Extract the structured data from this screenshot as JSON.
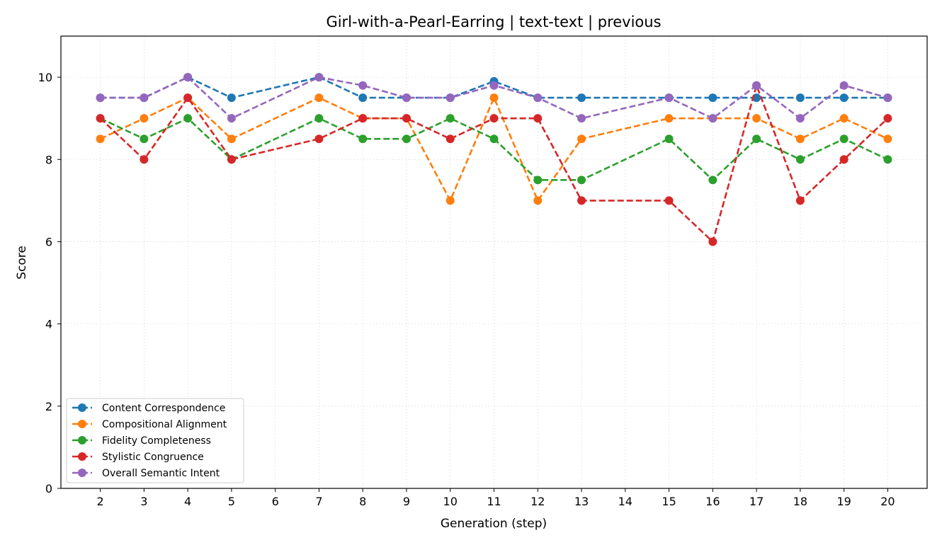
{
  "chart_data": {
    "type": "line",
    "title": "Girl-with-a-Pearl-Earring | text-text | previous",
    "xlabel": "Generation (step)",
    "ylabel": "Score",
    "x": [
      2,
      3,
      4,
      5,
      7,
      8,
      9,
      10,
      11,
      12,
      13,
      15,
      16,
      17,
      18,
      19,
      20
    ],
    "x_ticks": [
      2,
      3,
      4,
      5,
      6,
      7,
      8,
      9,
      10,
      11,
      12,
      13,
      14,
      15,
      16,
      17,
      18,
      19,
      20
    ],
    "xlim": [
      1.1,
      20.9
    ],
    "ylim": [
      0,
      11
    ],
    "y_ticks": [
      0,
      2,
      4,
      6,
      8,
      10
    ],
    "grid": true,
    "legend_position": "lower-left",
    "series": [
      {
        "name": "Content Correspondence",
        "color": "#1f77b4",
        "values": [
          9.5,
          9.5,
          10,
          9.5,
          10,
          9.5,
          9.5,
          9.5,
          9.9,
          9.5,
          9.5,
          9.5,
          9.5,
          9.5,
          9.5,
          9.5,
          9.5
        ]
      },
      {
        "name": "Compositional Alignment",
        "color": "#ff7f0e",
        "values": [
          8.5,
          9,
          9.5,
          8.5,
          9.5,
          9,
          9,
          7,
          9.5,
          7,
          8.5,
          9,
          9,
          9,
          8.5,
          9,
          8.5
        ]
      },
      {
        "name": "Fidelity Completeness",
        "color": "#2ca02c",
        "values": [
          9,
          8.5,
          9,
          8,
          9,
          8.5,
          8.5,
          9,
          8.5,
          7.5,
          7.5,
          8.5,
          7.5,
          8.5,
          8,
          8.5,
          8
        ]
      },
      {
        "name": "Stylistic Congruence",
        "color": "#d62728",
        "values": [
          9,
          8,
          9.5,
          8,
          8.5,
          9,
          9,
          8.5,
          9,
          9,
          7,
          7,
          6,
          9.8,
          7,
          8,
          9
        ]
      },
      {
        "name": "Overall Semantic Intent",
        "color": "#9467bd",
        "values": [
          9.5,
          9.5,
          10,
          9,
          10,
          9.8,
          9.5,
          9.5,
          9.8,
          9.5,
          9,
          9.5,
          9,
          9.8,
          9,
          9.8,
          9.5
        ]
      }
    ]
  }
}
